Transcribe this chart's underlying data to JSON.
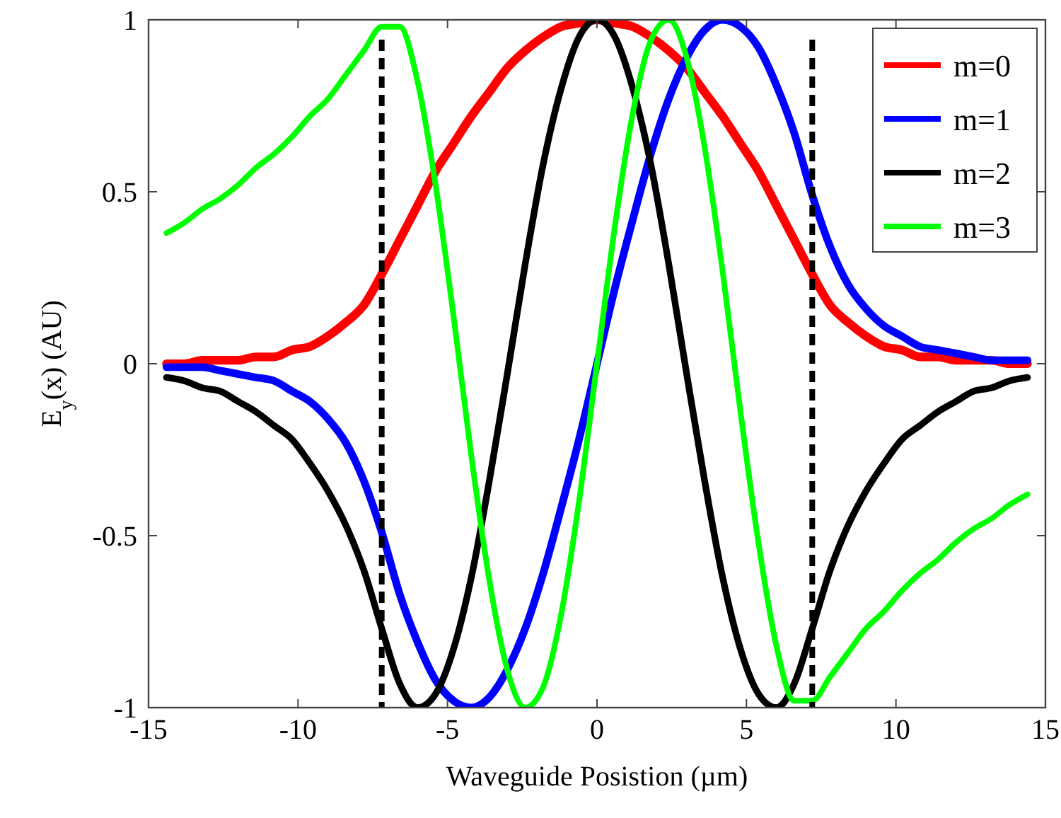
{
  "chart_data": {
    "type": "line",
    "xlabel": "Waveguide Posistion (µm)",
    "ylabel": "E$_{y}$(x) (AU)",
    "x": [
      -14.4,
      -13.8,
      -13.2,
      -12.6,
      -12.0,
      -11.4,
      -10.8,
      -10.2,
      -9.6,
      -9.0,
      -8.4,
      -7.8,
      -7.2,
      -6.6,
      -6.0,
      -5.4,
      -4.8,
      -4.2,
      -3.6,
      -3.0,
      -2.4,
      -1.8,
      -1.2,
      -0.6,
      0,
      0.6,
      1.2,
      1.8,
      2.4,
      3.0,
      3.6,
      4.2,
      4.8,
      5.4,
      6.0,
      6.6,
      7.2,
      7.8,
      8.4,
      9.0,
      9.6,
      10.2,
      10.8,
      11.4,
      12.0,
      12.6,
      13.2,
      13.8,
      14.4
    ],
    "series": [
      {
        "name": "m=0",
        "color": "#ff0000",
        "values": [
          0,
          0,
          0.01,
          0.01,
          0.01,
          0.02,
          0.02,
          0.04,
          0.05,
          0.08,
          0.12,
          0.17,
          0.26,
          0.36,
          0.46,
          0.56,
          0.64,
          0.72,
          0.79,
          0.86,
          0.91,
          0.95,
          0.98,
          0.99,
          1,
          0.99,
          0.98,
          0.95,
          0.91,
          0.86,
          0.79,
          0.72,
          0.64,
          0.56,
          0.46,
          0.36,
          0.26,
          0.17,
          0.12,
          0.08,
          0.05,
          0.04,
          0.02,
          0.02,
          0.01,
          0.01,
          0.01,
          0,
          0
        ]
      },
      {
        "name": "m=1",
        "color": "#0000ff",
        "values": [
          -0.01,
          -0.01,
          -0.01,
          -0.02,
          -0.03,
          -0.04,
          -0.05,
          -0.08,
          -0.11,
          -0.16,
          -0.23,
          -0.34,
          -0.49,
          -0.67,
          -0.81,
          -0.92,
          -0.98,
          -1,
          -0.97,
          -0.89,
          -0.77,
          -0.61,
          -0.42,
          -0.22,
          0,
          0.22,
          0.42,
          0.61,
          0.77,
          0.89,
          0.97,
          1,
          0.98,
          0.92,
          0.81,
          0.67,
          0.49,
          0.34,
          0.23,
          0.16,
          0.11,
          0.08,
          0.05,
          0.04,
          0.03,
          0.02,
          0.01,
          0.01,
          0.01
        ]
      },
      {
        "name": "m=2",
        "color": "#000000",
        "values": [
          -0.04,
          -0.05,
          -0.07,
          -0.08,
          -0.11,
          -0.14,
          -0.18,
          -0.22,
          -0.29,
          -0.37,
          -0.47,
          -0.6,
          -0.77,
          -0.93,
          -1,
          -0.96,
          -0.83,
          -0.62,
          -0.34,
          -0.03,
          0.29,
          0.58,
          0.8,
          0.95,
          1,
          0.95,
          0.8,
          0.58,
          0.29,
          -0.03,
          -0.34,
          -0.62,
          -0.83,
          -0.96,
          -1,
          -0.93,
          -0.77,
          -0.6,
          -0.47,
          -0.37,
          -0.29,
          -0.22,
          -0.18,
          -0.14,
          -0.11,
          -0.08,
          -0.07,
          -0.05,
          -0.04
        ]
      },
      {
        "name": "m=3",
        "color": "#00ff00",
        "values": [
          0.38,
          0.41,
          0.45,
          0.48,
          0.52,
          0.57,
          0.61,
          0.66,
          0.72,
          0.77,
          0.84,
          0.91,
          0.98,
          0.98,
          0.82,
          0.52,
          0.14,
          -0.27,
          -0.63,
          -0.89,
          -1,
          -0.94,
          -0.73,
          -0.4,
          0,
          0.4,
          0.73,
          0.94,
          1,
          0.89,
          0.63,
          0.27,
          -0.14,
          -0.52,
          -0.82,
          -0.98,
          -0.98,
          -0.91,
          -0.84,
          -0.77,
          -0.72,
          -0.66,
          -0.61,
          -0.57,
          -0.52,
          -0.48,
          -0.45,
          -0.41,
          -0.38
        ]
      }
    ],
    "ref_lines": [
      {
        "axis": "x",
        "value": -7.2,
        "color": "#000000",
        "line_style": "dashed"
      },
      {
        "axis": "x",
        "value": 7.2,
        "color": "#000000",
        "line_style": "dashed"
      }
    ],
    "xlim": [
      -15,
      15
    ],
    "ylim": [
      -1,
      1
    ],
    "xticks": [
      -15,
      -10,
      -5,
      0,
      5,
      10,
      15
    ],
    "yticks": [
      -1,
      -0.5,
      0,
      0.5,
      1
    ],
    "legend": "top right",
    "grid": false,
    "marker": "none",
    "line_style": "solid"
  }
}
